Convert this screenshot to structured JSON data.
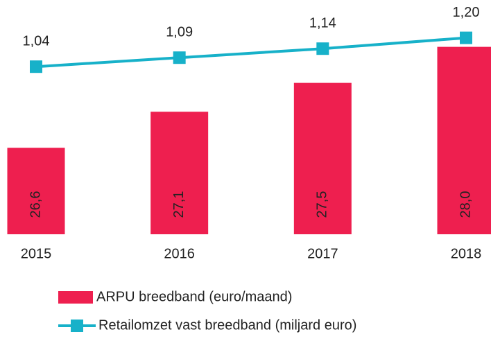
{
  "chart_data": {
    "type": "bar-line",
    "categories": [
      "2015",
      "2016",
      "2017",
      "2018"
    ],
    "series": [
      {
        "name": "ARPU breedband (euro/maand)",
        "type": "bar",
        "color": "#ee1f4f",
        "values": [
          26.6,
          27.1,
          27.5,
          28.0
        ],
        "value_labels": [
          "26,6",
          "27,1",
          "27,5",
          "28,0"
        ]
      },
      {
        "name": "Retailomzet vast breedband (miljard euro)",
        "type": "line",
        "axis": "y2",
        "color": "#17b1c9",
        "values": [
          1.04,
          1.09,
          1.14,
          1.2
        ],
        "value_labels": [
          "1,04",
          "1,09",
          "1,14",
          "1,20"
        ]
      }
    ],
    "ylim": [
      25.4,
      28.4
    ],
    "y2lim": [
      0.11,
      1.31
    ],
    "grid": false
  }
}
